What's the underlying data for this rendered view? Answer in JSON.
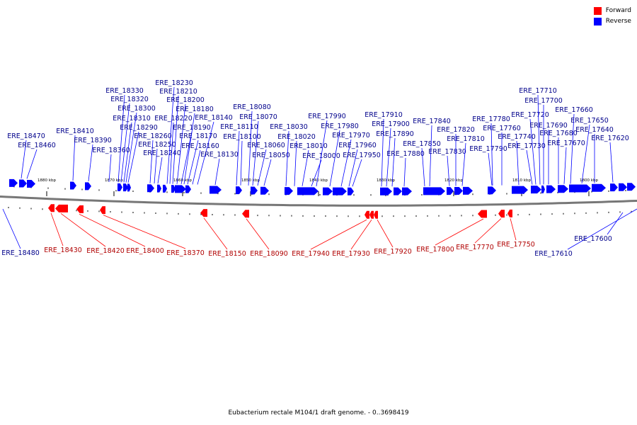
{
  "legend": {
    "forward_label": "Forward",
    "reverse_label": "Reverse",
    "forward_color": "#ff0000",
    "reverse_color": "#0000ff"
  },
  "caption": "Eubacterium rectale M104/1 draft genome. - 0..3698419",
  "scale_ticks": [
    "1880 kbp",
    "1870 kbp",
    "1860 kbp",
    "1850 kbp",
    "1840 kbp",
    "1830 kbp",
    "1820 kbp",
    "1810 kbp",
    "1800 kbp"
  ],
  "reverse_genes": [
    "ERE_18470",
    "ERE_18460",
    "ERE_18410",
    "ERE_18390",
    "ERE_18360",
    "ERE_18330",
    "ERE_18320",
    "ERE_18310",
    "ERE_18300",
    "ERE_18290",
    "ERE_18260",
    "ERE_18250",
    "ERE_18240",
    "ERE_18230",
    "ERE_18220",
    "ERE_18210",
    "ERE_18200",
    "ERE_18190",
    "ERE_18180",
    "ERE_18170",
    "ERE_18160",
    "ERE_18140",
    "ERE_18130",
    "ERE_18110",
    "ERE_18100",
    "ERE_18080",
    "ERE_18070",
    "ERE_18060",
    "ERE_18050",
    "ERE_18030",
    "ERE_18020",
    "ERE_18010",
    "ERE_18000",
    "ERE_17990",
    "ERE_17980",
    "ERE_17970",
    "ERE_17960",
    "ERE_17950",
    "ERE_17910",
    "ERE_17900",
    "ERE_17890",
    "ERE_17880",
    "ERE_17850",
    "ERE_17840",
    "ERE_17830",
    "ERE_17820",
    "ERE_17810",
    "ERE_17790",
    "ERE_17780",
    "ERE_17760",
    "ERE_17740",
    "ERE_17730",
    "ERE_17720",
    "ERE_17710",
    "ERE_17700",
    "ERE_17690",
    "ERE_17680",
    "ERE_17670",
    "ERE_17660",
    "ERE_17650",
    "ERE_17640",
    "ERE_17620",
    "ERE_17610",
    "ERE_17600",
    "ERE_18480"
  ],
  "forward_genes": [
    "ERE_18430",
    "ERE_18420",
    "ERE_18400",
    "ERE_18370",
    "ERE_18150",
    "ERE_18090",
    "ERE_17940",
    "ERE_17930",
    "ERE_17920",
    "ERE_17800",
    "ERE_17770",
    "ERE_17750"
  ]
}
